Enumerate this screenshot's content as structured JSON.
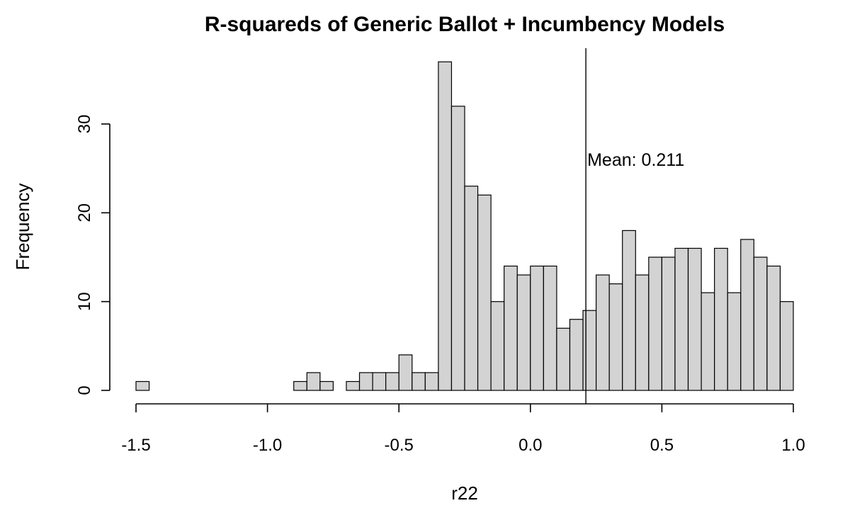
{
  "chart_data": {
    "type": "bar",
    "subtype": "histogram",
    "title": "R-squareds of Generic Ballot + Incumbency Models",
    "xlabel": "r22",
    "ylabel": "Frequency",
    "xlim": [
      -1.5,
      1.0
    ],
    "ylim": [
      0,
      30
    ],
    "x_ticks": [
      -1.5,
      -1.0,
      -0.5,
      0.0,
      0.5,
      1.0
    ],
    "x_tick_labels": [
      "-1.5",
      "-1.0",
      "-0.5",
      "0.0",
      "0.5",
      "1.0"
    ],
    "y_ticks": [
      0,
      10,
      20,
      30
    ],
    "y_tick_labels": [
      "0",
      "10",
      "20",
      "30"
    ],
    "bin_width": 0.05,
    "bin_start": -1.5,
    "counts": [
      1,
      0,
      0,
      0,
      0,
      0,
      0,
      0,
      0,
      0,
      0,
      0,
      1,
      2,
      1,
      0,
      1,
      2,
      2,
      2,
      4,
      2,
      2,
      37,
      32,
      23,
      22,
      10,
      14,
      13,
      14,
      14,
      7,
      8,
      9,
      13,
      12,
      18,
      13,
      15,
      15,
      16,
      16,
      11,
      16,
      11,
      17,
      15,
      14,
      10
    ],
    "bar_fill": "#d3d3d3",
    "bar_stroke": "#000000",
    "mean": 0.211,
    "mean_label": "Mean: 0.211",
    "grid": false,
    "legend": "none"
  }
}
